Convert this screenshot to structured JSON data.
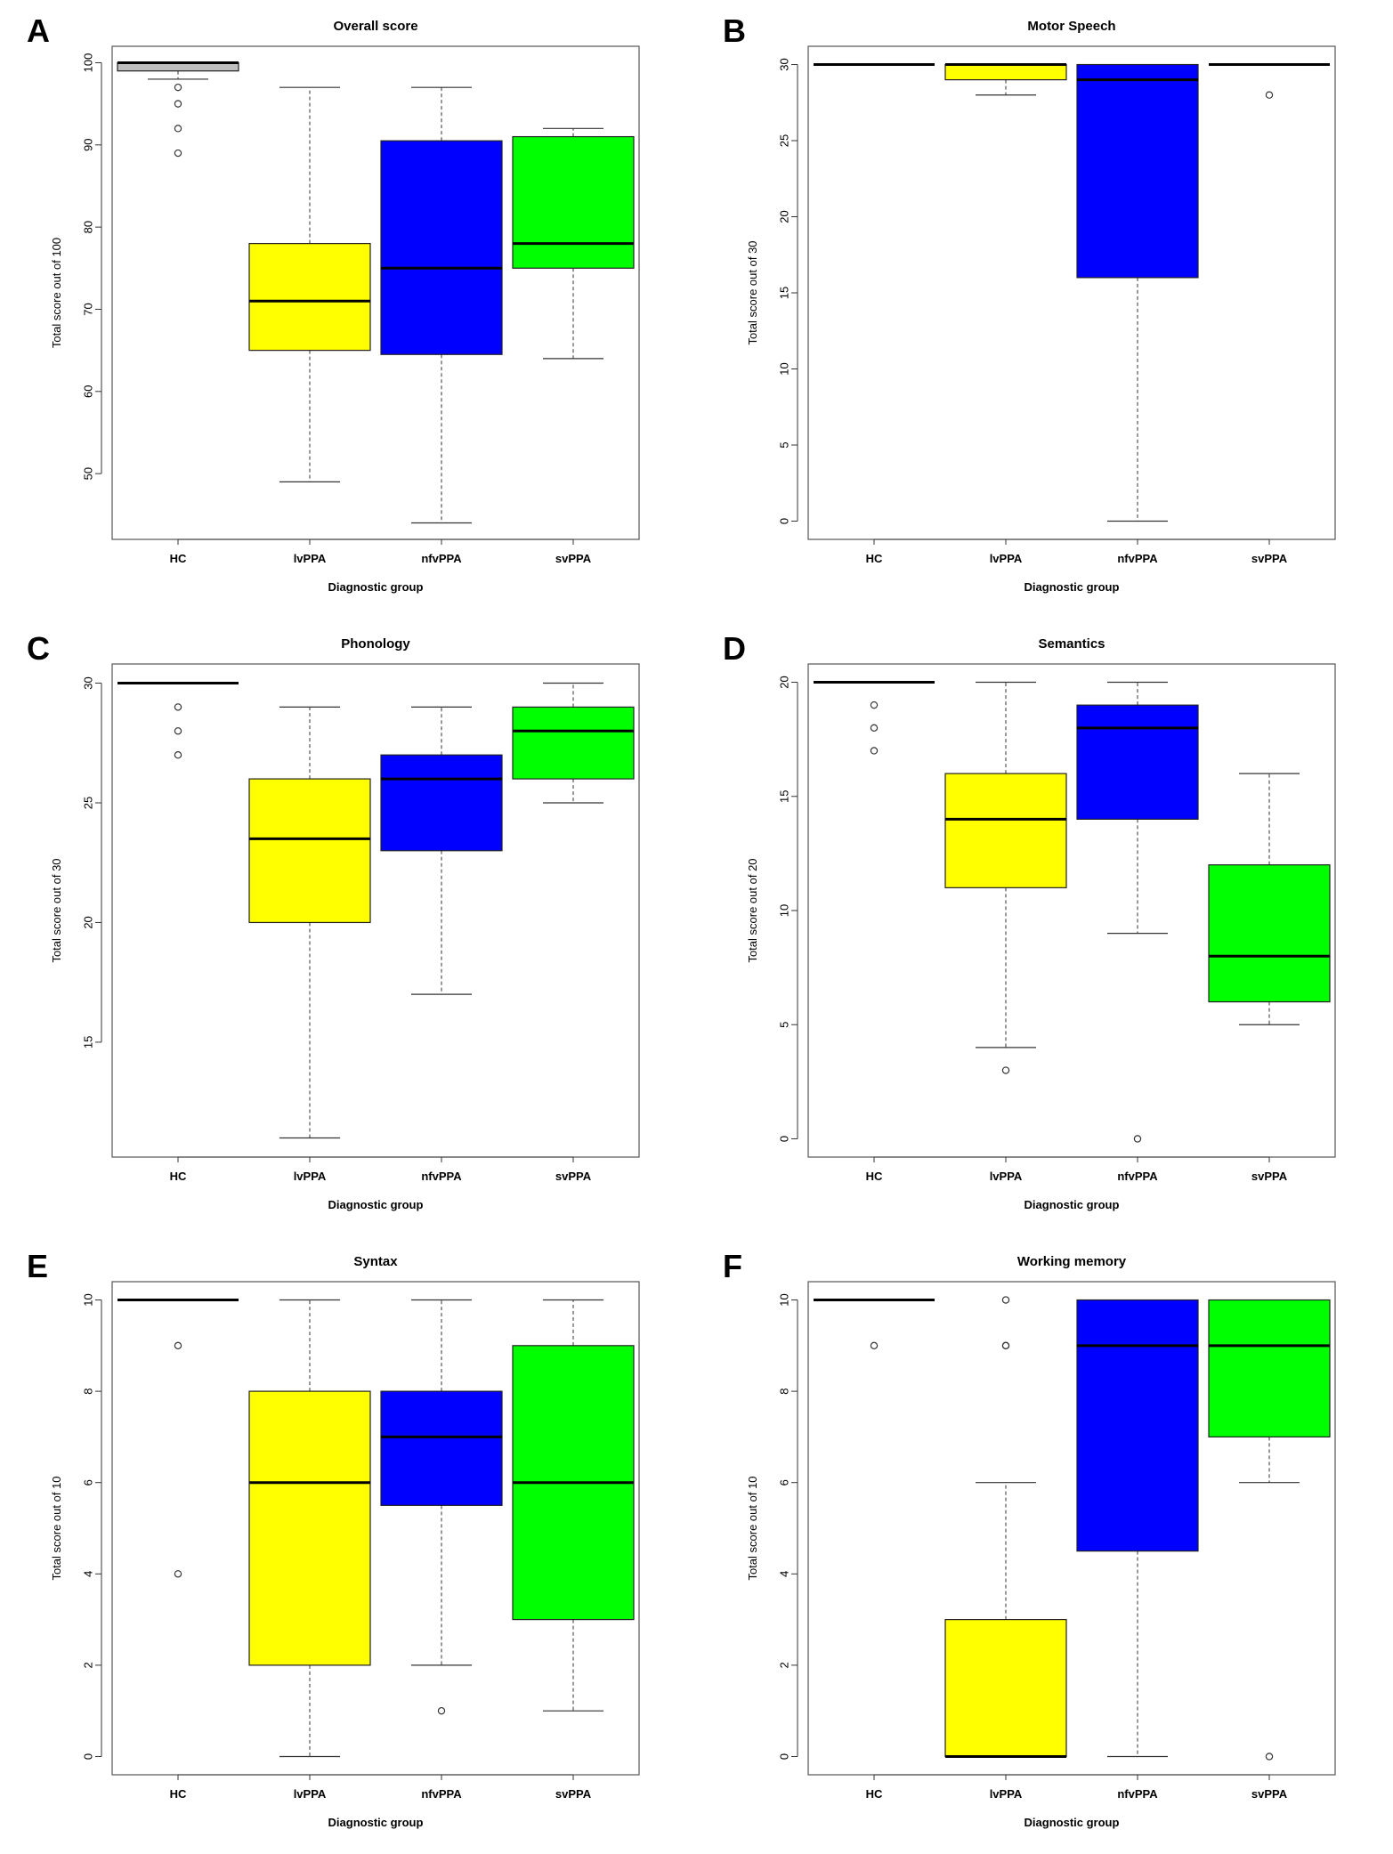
{
  "figure": {
    "group_colors": {
      "HC": "#bebebe",
      "lvPPA": "#ffff00",
      "nfvPPA": "#0000ff",
      "svPPA": "#00ff00"
    }
  },
  "chart_data": [
    {
      "panel": "A",
      "type": "box",
      "title": "Overall score",
      "xlabel": "Diagnostic group",
      "ylabel": "Total score out of 100",
      "ylim": [
        42,
        102
      ],
      "yticks": [
        50,
        60,
        70,
        80,
        90,
        100
      ],
      "categories": [
        "HC",
        "lvPPA",
        "nfvPPA",
        "svPPA"
      ],
      "boxes": [
        {
          "group": "HC",
          "min": 98,
          "q1": 99,
          "median": 100,
          "q3": 100,
          "max": 100,
          "outliers": [
            97,
            95,
            92,
            89
          ]
        },
        {
          "group": "lvPPA",
          "min": 49,
          "q1": 65,
          "median": 71,
          "q3": 78,
          "max": 97,
          "outliers": []
        },
        {
          "group": "nfvPPA",
          "min": 44,
          "q1": 64.5,
          "median": 75,
          "q3": 90.5,
          "max": 97,
          "outliers": []
        },
        {
          "group": "svPPA",
          "min": 64,
          "q1": 75,
          "median": 78,
          "q3": 91,
          "max": 92,
          "outliers": []
        }
      ]
    },
    {
      "panel": "B",
      "type": "box",
      "title": "Motor Speech",
      "xlabel": "Diagnostic group",
      "ylabel": "Total score out of 30",
      "ylim": [
        -1.2,
        31.2
      ],
      "yticks": [
        0,
        5,
        10,
        15,
        20,
        25,
        30
      ],
      "categories": [
        "HC",
        "lvPPA",
        "nfvPPA",
        "svPPA"
      ],
      "boxes": [
        {
          "group": "HC",
          "min": 30,
          "q1": 30,
          "median": 30,
          "q3": 30,
          "max": 30,
          "outliers": []
        },
        {
          "group": "lvPPA",
          "min": 28,
          "q1": 29,
          "median": 30,
          "q3": 30,
          "max": 30,
          "outliers": []
        },
        {
          "group": "nfvPPA",
          "min": 0,
          "q1": 16,
          "median": 29,
          "q3": 30,
          "max": 30,
          "outliers": []
        },
        {
          "group": "svPPA",
          "min": 30,
          "q1": 30,
          "median": 30,
          "q3": 30,
          "max": 30,
          "outliers": [
            28
          ]
        }
      ]
    },
    {
      "panel": "C",
      "type": "box",
      "title": "Phonology",
      "xlabel": "Diagnostic group",
      "ylabel": "Total score out of 30",
      "ylim": [
        10.2,
        30.8
      ],
      "yticks": [
        15,
        20,
        25,
        30
      ],
      "categories": [
        "HC",
        "lvPPA",
        "nfvPPA",
        "svPPA"
      ],
      "boxes": [
        {
          "group": "HC",
          "min": 30,
          "q1": 30,
          "median": 30,
          "q3": 30,
          "max": 30,
          "outliers": [
            29,
            28,
            27
          ]
        },
        {
          "group": "lvPPA",
          "min": 11,
          "q1": 20,
          "median": 23.5,
          "q3": 26,
          "max": 29,
          "outliers": []
        },
        {
          "group": "nfvPPA",
          "min": 17,
          "q1": 23,
          "median": 26,
          "q3": 27,
          "max": 29,
          "outliers": []
        },
        {
          "group": "svPPA",
          "min": 25,
          "q1": 26,
          "median": 28,
          "q3": 29,
          "max": 30,
          "outliers": []
        }
      ]
    },
    {
      "panel": "D",
      "type": "box",
      "title": "Semantics",
      "xlabel": "Diagnostic group",
      "ylabel": "Total score out of 20",
      "ylim": [
        -0.8,
        20.8
      ],
      "yticks": [
        0,
        5,
        10,
        15,
        20
      ],
      "categories": [
        "HC",
        "lvPPA",
        "nfvPPA",
        "svPPA"
      ],
      "boxes": [
        {
          "group": "HC",
          "min": 20,
          "q1": 20,
          "median": 20,
          "q3": 20,
          "max": 20,
          "outliers": [
            19,
            18,
            17
          ]
        },
        {
          "group": "lvPPA",
          "min": 4,
          "q1": 11,
          "median": 14,
          "q3": 16,
          "max": 20,
          "outliers": [
            3
          ]
        },
        {
          "group": "nfvPPA",
          "min": 9,
          "q1": 14,
          "median": 18,
          "q3": 19,
          "max": 20,
          "outliers": [
            0
          ]
        },
        {
          "group": "svPPA",
          "min": 5,
          "q1": 6,
          "median": 8,
          "q3": 12,
          "max": 16,
          "outliers": []
        }
      ]
    },
    {
      "panel": "E",
      "type": "box",
      "title": "Syntax",
      "xlabel": "Diagnostic group",
      "ylabel": "Total score out of 10",
      "ylim": [
        -0.4,
        10.4
      ],
      "yticks": [
        0,
        2,
        4,
        6,
        8,
        10
      ],
      "categories": [
        "HC",
        "lvPPA",
        "nfvPPA",
        "svPPA"
      ],
      "boxes": [
        {
          "group": "HC",
          "min": 10,
          "q1": 10,
          "median": 10,
          "q3": 10,
          "max": 10,
          "outliers": [
            9,
            4
          ]
        },
        {
          "group": "lvPPA",
          "min": 0,
          "q1": 2,
          "median": 6,
          "q3": 8,
          "max": 10,
          "outliers": []
        },
        {
          "group": "nfvPPA",
          "min": 2,
          "q1": 5.5,
          "median": 7,
          "q3": 8,
          "max": 10,
          "outliers": [
            1
          ]
        },
        {
          "group": "svPPA",
          "min": 1,
          "q1": 3,
          "median": 6,
          "q3": 9,
          "max": 10,
          "outliers": []
        }
      ]
    },
    {
      "panel": "F",
      "type": "box",
      "title": "Working memory",
      "xlabel": "Diagnostic group",
      "ylabel": "Total score out of 10",
      "ylim": [
        -0.4,
        10.4
      ],
      "yticks": [
        0,
        2,
        4,
        6,
        8,
        10
      ],
      "categories": [
        "HC",
        "lvPPA",
        "nfvPPA",
        "svPPA"
      ],
      "boxes": [
        {
          "group": "HC",
          "min": 10,
          "q1": 10,
          "median": 10,
          "q3": 10,
          "max": 10,
          "outliers": [
            9
          ]
        },
        {
          "group": "lvPPA",
          "min": 0,
          "q1": 0,
          "median": 0,
          "q3": 3,
          "max": 6,
          "outliers": [
            9,
            9,
            10
          ]
        },
        {
          "group": "nfvPPA",
          "min": 0,
          "q1": 4.5,
          "median": 9,
          "q3": 10,
          "max": 10,
          "outliers": []
        },
        {
          "group": "svPPA",
          "min": 6,
          "q1": 7,
          "median": 9,
          "q3": 10,
          "max": 10,
          "outliers": [
            0
          ]
        }
      ]
    }
  ]
}
